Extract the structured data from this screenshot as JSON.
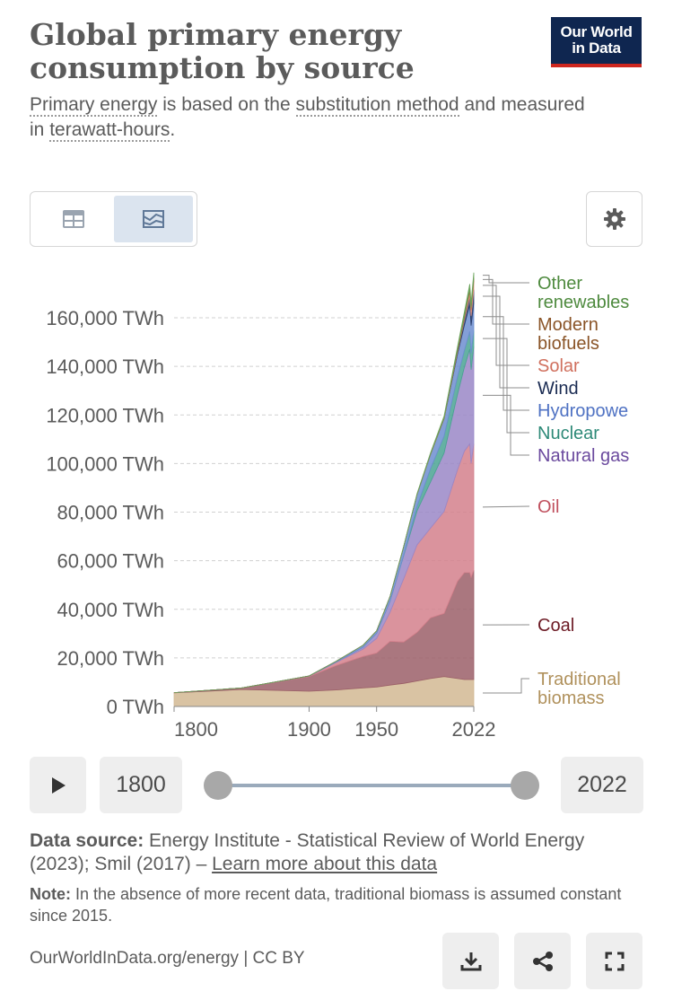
{
  "header": {
    "title": "Global primary energy consumption by source",
    "subtitle_link1": "Primary energy",
    "subtitle_text1": " is based on the ",
    "subtitle_link2": "substitution method",
    "subtitle_text2": " and measured in ",
    "subtitle_link3": "terawatt-hours",
    "subtitle_text3": "."
  },
  "logo": {
    "line1": "Our World",
    "line2": "in Data"
  },
  "controls": {
    "table_icon": "table-icon",
    "chart_icon": "area-chart-icon",
    "settings_icon": "gear-icon"
  },
  "timeline": {
    "start_year": "1800",
    "end_year": "2022",
    "play_icon": "play-icon"
  },
  "footer": {
    "source_label": "Data source:",
    "source_text": " Energy Institute - Statistical Review of World Energy (2023); Smil (2017) – ",
    "source_link": "Learn more about this data",
    "note_label": "Note:",
    "note_text": " In the absence of more recent data, traditional biomass is assumed constant since 2015.",
    "credit": "OurWorldInData.org/energy | CC BY",
    "download_icon": "download-icon",
    "share_icon": "share-icon",
    "fullscreen_icon": "fullscreen-icon"
  },
  "colors": {
    "traditional_biomass": "#d2b993",
    "coal": "#9b5f68",
    "oil": "#d3808c",
    "natural_gas": "#9a87c7",
    "nuclear": "#4aa393",
    "hydropower": "#6d8ed0",
    "wind": "#2a3d6b",
    "solar": "#e39685",
    "modern_biofuels": "#9f6a3e",
    "other_renewables": "#6aa35a"
  },
  "chart_data": {
    "type": "area",
    "stacked": true,
    "title": "Global primary energy consumption by source",
    "ylabel": "TWh",
    "ylim": [
      0,
      180000
    ],
    "yticks": [
      0,
      20000,
      40000,
      60000,
      80000,
      100000,
      120000,
      140000,
      160000
    ],
    "ytick_labels": [
      "0 TWh",
      "20,000 TWh",
      "40,000 TWh",
      "60,000 TWh",
      "80,000 TWh",
      "100,000 TWh",
      "120,000 TWh",
      "140,000 TWh",
      "160,000 TWh"
    ],
    "xlim": [
      1800,
      2022
    ],
    "xticks": [
      1800,
      1900,
      1950,
      2022
    ],
    "xtick_labels": [
      "1800",
      "1900",
      "1950",
      "2022"
    ],
    "x": [
      1800,
      1850,
      1900,
      1920,
      1940,
      1950,
      1960,
      1970,
      1980,
      1990,
      2000,
      2010,
      2015,
      2019,
      2020,
      2022
    ],
    "series": [
      {
        "name": "Traditional biomass",
        "key": "traditional_biomass",
        "label_lines": [
          "Traditional",
          "biomass"
        ],
        "values": [
          5600,
          7000,
          6300,
          6800,
          7600,
          8000,
          8800,
          9500,
          10500,
          11500,
          12300,
          11500,
          11100,
          11100,
          11100,
          11100
        ]
      },
      {
        "name": "Coal",
        "key": "coal",
        "label_lines": [
          "Coal"
        ],
        "values": [
          100,
          600,
          6000,
          10000,
          13000,
          14000,
          18000,
          17000,
          20000,
          25000,
          26000,
          40000,
          44000,
          44000,
          42000,
          45000
        ]
      },
      {
        "name": "Oil",
        "key": "oil",
        "label_lines": [
          "Oil"
        ],
        "values": [
          0,
          0,
          200,
          1300,
          3000,
          6000,
          12000,
          26000,
          36000,
          37000,
          42000,
          46000,
          50000,
          53000,
          47000,
          52000
        ]
      },
      {
        "name": "Natural gas",
        "key": "natural_gas",
        "label_lines": [
          "Natural gas"
        ],
        "values": [
          0,
          0,
          60,
          200,
          800,
          2100,
          4500,
          9500,
          14000,
          19000,
          24000,
          31000,
          34500,
          39000,
          38500,
          40000
        ]
      },
      {
        "name": "Nuclear",
        "key": "nuclear",
        "label_lines": [
          "Nuclear"
        ],
        "values": [
          0,
          0,
          0,
          0,
          0,
          0,
          0,
          200,
          2000,
          5500,
          7000,
          7300,
          6900,
          7200,
          6800,
          6700
        ]
      },
      {
        "name": "Hydropower",
        "key": "hydropower",
        "label_lines": [
          "Hydropowe"
        ],
        "values": [
          0,
          0,
          0,
          300,
          800,
          1000,
          2000,
          3500,
          4800,
          5900,
          7200,
          9300,
          10400,
          11000,
          11400,
          11300
        ]
      },
      {
        "name": "Wind",
        "key": "wind",
        "label_lines": [
          "Wind"
        ],
        "values": [
          0,
          0,
          0,
          0,
          0,
          0,
          0,
          0,
          0,
          0,
          80,
          900,
          2200,
          3600,
          4000,
          5500
        ]
      },
      {
        "name": "Solar",
        "key": "solar",
        "label_lines": [
          "Solar"
        ],
        "values": [
          0,
          0,
          0,
          0,
          0,
          0,
          0,
          0,
          0,
          0,
          0,
          100,
          700,
          1900,
          2300,
          3500
        ]
      },
      {
        "name": "Modern biofuels",
        "key": "modern_biofuels",
        "label_lines": [
          "Modern",
          "biofuels"
        ],
        "values": [
          0,
          0,
          0,
          0,
          0,
          0,
          0,
          0,
          100,
          200,
          300,
          900,
          1100,
          1300,
          1200,
          1300
        ]
      },
      {
        "name": "Other renewables",
        "key": "other_renewables",
        "label_lines": [
          "Other",
          "renewables"
        ],
        "values": [
          0,
          0,
          0,
          0,
          0,
          0,
          0,
          100,
          250,
          450,
          650,
          1100,
          1500,
          1800,
          1900,
          2200
        ]
      }
    ]
  }
}
